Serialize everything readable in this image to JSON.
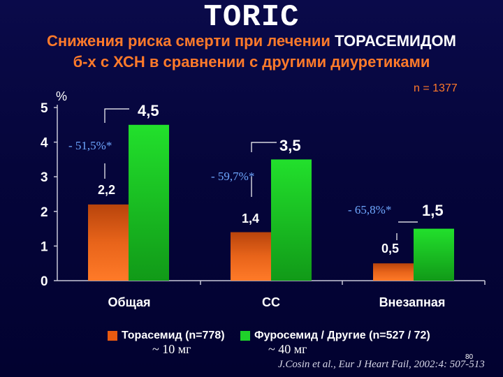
{
  "header": {
    "title": "TORIC",
    "subtitle_line1_a": "Снижения риска смерти при лечении",
    "subtitle_line1_b": "ТОРАСЕМИДОМ",
    "subtitle_line2_a": "б-х с ХСН в сравнении с другими",
    "subtitle_line2_b": "диуретиками"
  },
  "n_label": "n = 1377",
  "dose": {
    "torasemide": "~ 10 мг",
    "furosemide": "~ 40 мг"
  },
  "citation": "J.Cosin et al., Eur J Heart Fail, 2002:4: 507-513",
  "page_number": "80",
  "colors": {
    "torasemide": "#e85a10",
    "furosemide": "#1fd12a",
    "annotation": "#6fa8ff",
    "accent": "#ff7a2a"
  },
  "chart_data": {
    "type": "bar",
    "categories": [
      "Общая",
      "СС",
      "Внезапная"
    ],
    "ylabel": "%",
    "ylim": [
      0,
      5
    ],
    "yticks": [
      "0",
      "1",
      "2",
      "3",
      "4",
      "5"
    ],
    "series": [
      {
        "name": "Торасемид (n=778)",
        "values": [
          2.2,
          1.4,
          0.5
        ],
        "labels": [
          "2,2",
          "1,4",
          "0,5"
        ]
      },
      {
        "name": "Фуросемид / Другие (n=527 / 72)",
        "values": [
          4.5,
          3.5,
          1.5
        ],
        "labels": [
          "4,5",
          "3,5",
          "1,5"
        ]
      }
    ],
    "annotations": [
      "- 51,5%*",
      "- 59,7%*",
      "- 65,8%*"
    ],
    "grid": false,
    "legend": "bottom"
  }
}
